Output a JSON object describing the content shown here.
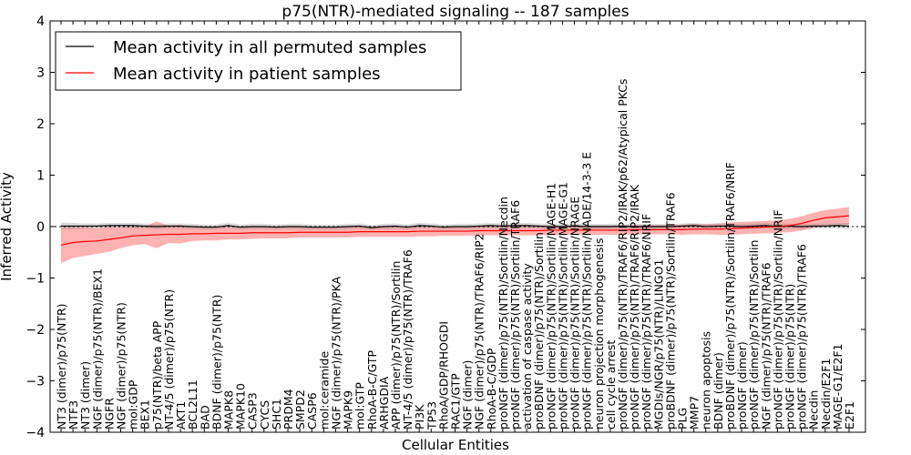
{
  "chart_data": {
    "type": "line",
    "title": "p75(NTR)-mediated signaling -- 187 samples",
    "xlabel": "Cellular Entities",
    "ylabel": "Inferred Activity",
    "ylim": [
      -4,
      4
    ],
    "yticks": [
      "4",
      "3",
      "2",
      "1",
      "0",
      "−1",
      "−2",
      "−3",
      "−4"
    ],
    "ytick_values": [
      4,
      3,
      2,
      1,
      0,
      -1,
      -2,
      -3,
      -4
    ],
    "legend": {
      "placement": "top-left",
      "entries": [
        {
          "label": "Mean activity in all permuted samples",
          "color": "#000000"
        },
        {
          "label": "Mean activity in patient samples",
          "color": "#ff0000"
        }
      ]
    },
    "categories": [
      "NT3 (dimer)/p75(NTR)",
      "NTF3",
      "NT3 (dimer)",
      "NGF (dimer)/p75(NTR)/BEX1",
      "NGFR",
      "NGF (dimer)/p75(NTR)",
      "mol:GDP",
      "BEX1",
      "p75(NTR)/beta APP",
      "NT-4/5 (dimer)/p75(NTR)",
      "AKT1",
      "BCL2L11",
      "BAD",
      "BDNF (dimer)/p75(NTR)",
      "MAPK8",
      "MAPK10",
      "CASP3",
      "CYCS",
      "SHC1",
      "PRDM4",
      "SMPD2",
      "CASP6",
      "mol:ceramide",
      "NGF (dimer)/p75(NTR)/PKA",
      "MAPK9",
      "mol:GTP",
      "RhoA-B-C/GTP",
      "ARHGDIA",
      "APP (dimer)/p75(NTR)/Sortilin",
      "NT-4/5 (dimer)/p75(NTR)/TRAF6",
      "PI3K",
      "TP53",
      "RhoA/GDP/RHOGDI",
      "RAC1/GTP",
      "NGF (dimer)",
      "NGF (dimer)/p75(NTR)/TRAF6/RIP2",
      "RhoA-B-C/GDP",
      "proNGF (dimer)/p75(NTR)/Sortilin/Necdin",
      "proNGF (dimer)/p75(NTR)/Sortilin/TRAF6",
      "activation of caspase activity",
      "proBDNF (dimer)/p75(NTR)/Sortilin",
      "proNGF (dimer)/p75(NTR)/Sortilin/MAGE-H1",
      "proNGF (dimer)/p75(NTR)/Sortilin/MAGE-G1",
      "proNGF (dimer)/p75(NTR)/Sortilin/NRAGE",
      "proNGF (dimer)/p75(NTR)/Sortilin/NADE/14-3-3 E",
      "neuron projection morphogenesis",
      "cell cycle arrest",
      "proNGF (dimer)/p75(NTR)/TRAF6/RIP2/IRAK/p62/Atypical PKCs",
      "proNGF (dimer)/p75(NTR)/TRAF6/RIP2/IRAK",
      "proNGF (dimer)/p75(NTR)/TRAF6/NRIF",
      "MGDIs/NGR/p75(NTR)/LINGO1",
      "proBDNF (dimer)/p75(NTR)/Sortilin/TRAF6",
      "PLG",
      "MMP7",
      "neuron apoptosis",
      "BDNF (dimer)",
      "proBDNF (dimer)/p75(NTR)/Sortilin/TRAF6/NRIF",
      "proNGF (dimer)",
      "proNGF (dimer)/p75(NTR)/Sortilin",
      "NGF (dimer)/p75(NTR)/TRAF6",
      "proNGF (dimer)/p75(NTR)/Sortilin/NRIF",
      "proNGF (dimer)/p75(NTR)",
      "proNGF (dimer)/p75(NTR)/TRAF6",
      "Necdin",
      "Necdin/E2F1",
      "MAGE-G1/E2F1",
      "E2F1"
    ],
    "series": [
      {
        "name": "Mean activity in all permuted samples",
        "color": "#000000",
        "values": [
          0.01,
          0.01,
          0.01,
          0.01,
          0.02,
          0.02,
          0.02,
          0.01,
          0.0,
          0.01,
          0.01,
          0.0,
          -0.01,
          -0.01,
          0.02,
          -0.01,
          0.0,
          0.0,
          -0.01,
          0.0,
          0.0,
          -0.01,
          -0.01,
          -0.01,
          0.0,
          0.01,
          -0.02,
          0.0,
          0.01,
          -0.01,
          0.02,
          0.01,
          -0.01,
          0.0,
          0.0,
          0.01,
          0.02,
          0.01,
          0.02,
          0.02,
          0.01,
          0.0,
          0.0,
          0.01,
          0.0,
          0.0,
          0.0,
          0.01,
          0.0,
          0.0,
          0.0,
          0.0,
          0.01,
          0.02,
          0.0,
          0.01,
          0.01,
          0.0,
          0.01,
          0.02,
          0.0,
          0.01,
          0.0,
          0.01,
          0.01,
          0.02,
          0.01
        ]
      },
      {
        "name": "Mean activity in patient samples",
        "color": "#ff0000",
        "values": [
          -0.36,
          -0.31,
          -0.29,
          -0.28,
          -0.25,
          -0.22,
          -0.18,
          -0.17,
          -0.16,
          -0.15,
          -0.15,
          -0.14,
          -0.14,
          -0.13,
          -0.13,
          -0.13,
          -0.12,
          -0.12,
          -0.12,
          -0.12,
          -0.11,
          -0.11,
          -0.11,
          -0.11,
          -0.11,
          -0.1,
          -0.1,
          -0.1,
          -0.1,
          -0.1,
          -0.09,
          -0.09,
          -0.09,
          -0.09,
          -0.09,
          -0.08,
          -0.08,
          -0.08,
          -0.08,
          -0.08,
          -0.08,
          -0.07,
          -0.07,
          -0.07,
          -0.07,
          -0.07,
          -0.07,
          -0.07,
          -0.06,
          -0.06,
          -0.06,
          -0.06,
          -0.06,
          -0.05,
          -0.05,
          -0.05,
          -0.04,
          -0.03,
          -0.02,
          -0.01,
          0.0,
          0.02,
          0.06,
          0.12,
          0.17,
          0.19,
          0.21
        ]
      }
    ],
    "bands": [
      {
        "name": "patient spread",
        "color": "#ff0000",
        "half_width": [
          0.35,
          0.3,
          0.28,
          0.25,
          0.24,
          0.2,
          0.18,
          0.17,
          0.26,
          0.17,
          0.18,
          0.14,
          0.13,
          0.14,
          0.12,
          0.12,
          0.12,
          0.11,
          0.11,
          0.11,
          0.1,
          0.1,
          0.1,
          0.1,
          0.1,
          0.1,
          0.1,
          0.1,
          0.1,
          0.1,
          0.1,
          0.1,
          0.09,
          0.09,
          0.09,
          0.09,
          0.09,
          0.09,
          0.09,
          0.09,
          0.09,
          0.09,
          0.09,
          0.09,
          0.09,
          0.09,
          0.09,
          0.09,
          0.09,
          0.09,
          0.09,
          0.09,
          0.1,
          0.1,
          0.1,
          0.11,
          0.12,
          0.12,
          0.12,
          0.12,
          0.12,
          0.13,
          0.14,
          0.15,
          0.15,
          0.16,
          0.17
        ]
      },
      {
        "name": "permuted spread",
        "color": "#808080",
        "half_width": [
          0.07,
          0.06,
          0.05,
          0.05,
          0.05,
          0.05,
          0.05,
          0.05,
          0.05,
          0.05,
          0.05,
          0.05,
          0.05,
          0.05,
          0.05,
          0.05,
          0.05,
          0.05,
          0.05,
          0.05,
          0.05,
          0.05,
          0.05,
          0.05,
          0.05,
          0.05,
          0.05,
          0.05,
          0.05,
          0.05,
          0.05,
          0.05,
          0.05,
          0.05,
          0.05,
          0.05,
          0.05,
          0.05,
          0.05,
          0.05,
          0.05,
          0.05,
          0.05,
          0.05,
          0.05,
          0.05,
          0.05,
          0.05,
          0.05,
          0.05,
          0.05,
          0.05,
          0.05,
          0.05,
          0.05,
          0.05,
          0.05,
          0.05,
          0.05,
          0.05,
          0.05,
          0.05,
          0.05,
          0.05,
          0.05,
          0.05,
          0.06
        ]
      }
    ]
  }
}
